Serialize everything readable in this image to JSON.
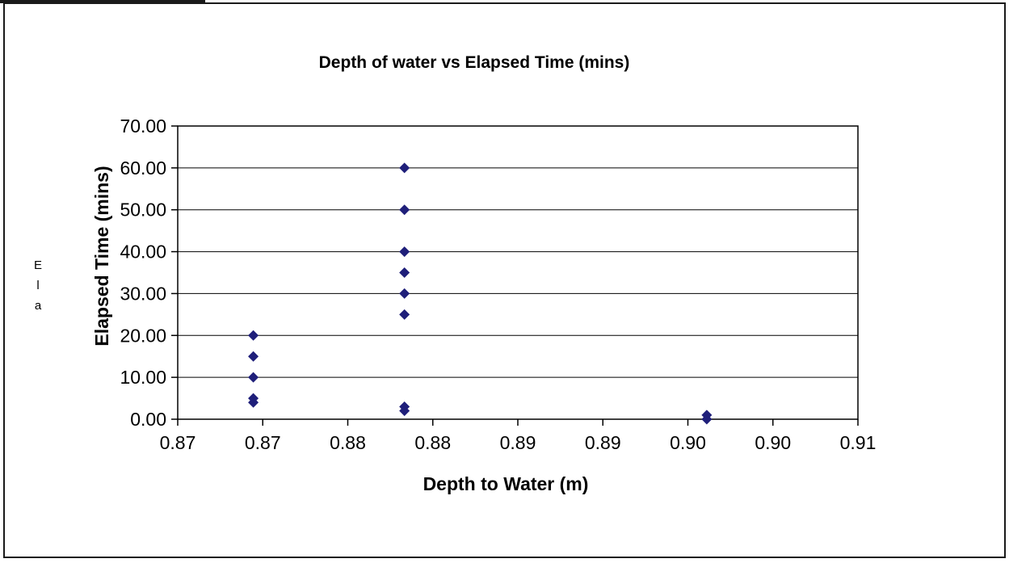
{
  "chart_data": {
    "type": "scatter",
    "title": "Depth of water vs Elapsed Time (mins)",
    "xlabel": "Depth to Water (m)",
    "ylabel": "Elapsed Time (mins)",
    "stray_label": [
      "E",
      "l",
      "a"
    ],
    "xlim": [
      0.865,
      0.91
    ],
    "ylim": [
      0,
      70
    ],
    "x_tick_labels": [
      "0.87",
      "0.87",
      "0.88",
      "0.88",
      "0.89",
      "0.89",
      "0.90",
      "0.90",
      "0.91"
    ],
    "y_tick_labels": [
      "0.00",
      "10.00",
      "20.00",
      "30.00",
      "40.00",
      "50.00",
      "60.00",
      "70.00"
    ],
    "grid": "horizontal",
    "legend": "none",
    "marker": "diamond",
    "marker_color": "#1f1f7a",
    "series": [
      {
        "points": [
          {
            "x": 0.87,
            "y": 20
          },
          {
            "x": 0.87,
            "y": 15
          },
          {
            "x": 0.87,
            "y": 10
          },
          {
            "x": 0.87,
            "y": 5
          },
          {
            "x": 0.87,
            "y": 4
          },
          {
            "x": 0.88,
            "y": 60
          },
          {
            "x": 0.88,
            "y": 50
          },
          {
            "x": 0.88,
            "y": 40
          },
          {
            "x": 0.88,
            "y": 35
          },
          {
            "x": 0.88,
            "y": 30
          },
          {
            "x": 0.88,
            "y": 25
          },
          {
            "x": 0.88,
            "y": 3
          },
          {
            "x": 0.88,
            "y": 2
          },
          {
            "x": 0.9,
            "y": 1
          },
          {
            "x": 0.9,
            "y": 0
          }
        ]
      }
    ]
  }
}
